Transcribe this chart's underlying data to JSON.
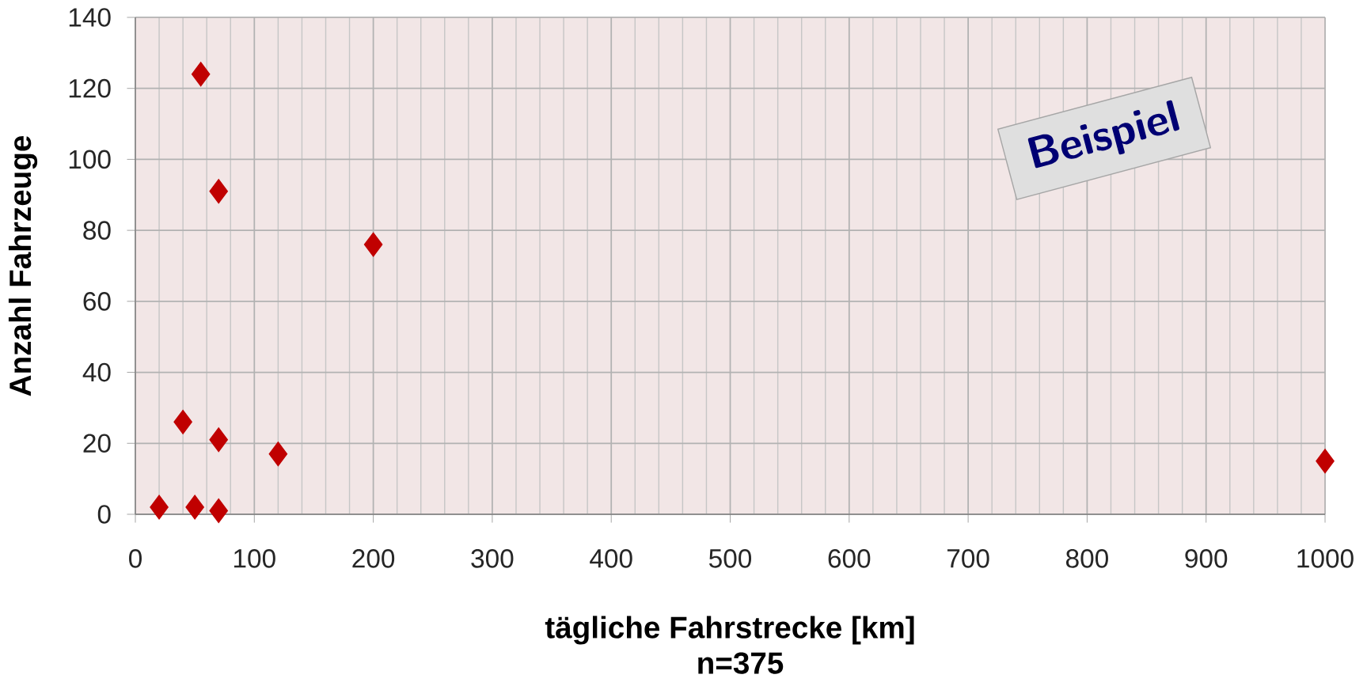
{
  "chart_data": {
    "type": "scatter",
    "xlabel": "tägliche Fahrstrecke [km]",
    "ylabel": "Anzahl Fahrzeuge",
    "annotations": [
      "n=375",
      "Beispiel"
    ],
    "series": [
      {
        "color": "#c00000",
        "x": [
          20,
          40,
          50,
          55,
          70,
          70,
          70,
          120,
          200,
          1000
        ],
        "values": [
          2,
          26,
          2,
          124,
          91,
          21,
          1,
          17,
          76,
          15
        ]
      }
    ],
    "xlim": [
      0,
      1000
    ],
    "ylim": [
      0,
      140
    ],
    "xticks": [
      0,
      100,
      200,
      300,
      400,
      500,
      600,
      700,
      800,
      900,
      1000
    ],
    "yticks": [
      0,
      20,
      40,
      60,
      80,
      100,
      120,
      140
    ],
    "grid": true,
    "marker": "diamond"
  }
}
